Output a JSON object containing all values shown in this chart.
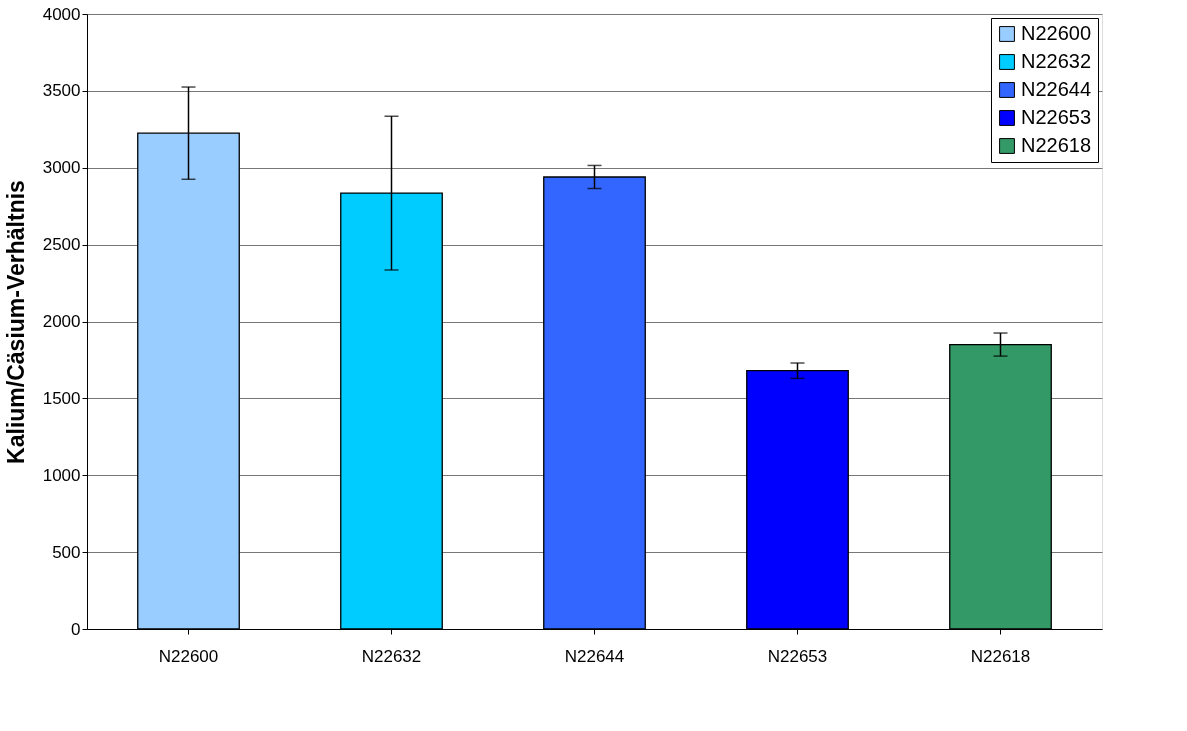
{
  "chart_data": {
    "type": "bar",
    "ylabel": "Kalium/Cäsium-Verhältnis",
    "categories": [
      "N22600",
      "N22632",
      "N22644",
      "N22653",
      "N22618"
    ],
    "series": [
      {
        "name": "N22600",
        "color": "#99ccff",
        "values": [
          3225,
          null,
          null,
          null,
          null
        ],
        "errors": [
          300,
          null,
          null,
          null,
          null
        ]
      },
      {
        "name": "N22632",
        "color": "#00ccff",
        "values": [
          null,
          2835,
          null,
          null,
          null
        ],
        "errors": [
          null,
          500,
          null,
          null,
          null
        ]
      },
      {
        "name": "N22644",
        "color": "#3366ff",
        "values": [
          null,
          null,
          2940,
          null,
          null
        ],
        "errors": [
          null,
          null,
          75,
          null,
          null
        ]
      },
      {
        "name": "N22653",
        "color": "#0000ff",
        "values": [
          null,
          null,
          null,
          1680,
          null
        ],
        "errors": [
          null,
          null,
          null,
          50,
          null
        ]
      },
      {
        "name": "N22618",
        "color": "#339966",
        "values": [
          null,
          null,
          null,
          null,
          1850
        ],
        "errors": [
          null,
          null,
          null,
          null,
          75
        ]
      }
    ],
    "ylim": [
      0,
      4000
    ],
    "yticks": [
      0,
      500,
      1000,
      1500,
      2000,
      2500,
      3000,
      3500,
      4000
    ],
    "grid": "y",
    "legend": "top right"
  }
}
